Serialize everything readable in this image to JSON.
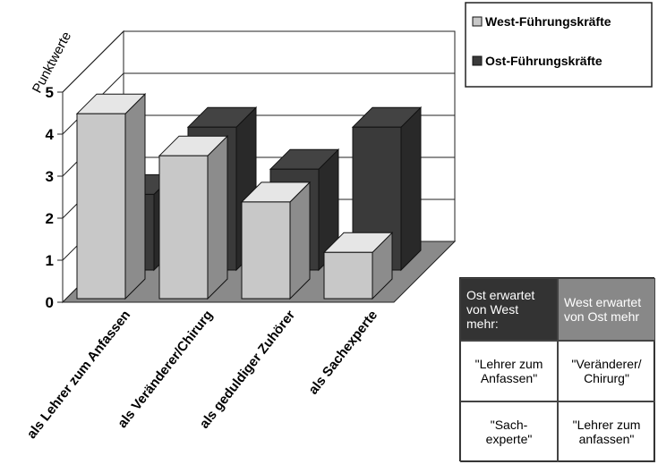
{
  "chart_data": {
    "type": "bar3d",
    "y_label": "Punktwerte",
    "categories": [
      "als Lehrer zum Anfassen",
      "als Veränderer/Chirurg",
      "als geduldiger Zuhörer",
      "als Sachexperte"
    ],
    "series": [
      {
        "name": "West-Führungskräfte",
        "color": "#c8c8c8",
        "values": [
          4.4,
          3.4,
          2.3,
          1.1
        ]
      },
      {
        "name": "Ost-Führungskräfte",
        "color": "#3a3a3a",
        "values": [
          1.8,
          3.4,
          2.4,
          3.4
        ]
      }
    ],
    "ylim": [
      0,
      5
    ],
    "yticks": [
      0,
      1,
      2,
      3,
      4,
      5
    ],
    "grid": true
  },
  "table": {
    "header": [
      "Ost erwartet von West mehr:",
      "West erwartet von Ost mehr"
    ],
    "rows": [
      [
        "\"Lehrer zum Anfassen\"",
        "\"Veränderer/ Chirurg\""
      ],
      [
        "\"Sach- experte\"",
        "\"Lehrer zum anfassen\""
      ]
    ]
  }
}
